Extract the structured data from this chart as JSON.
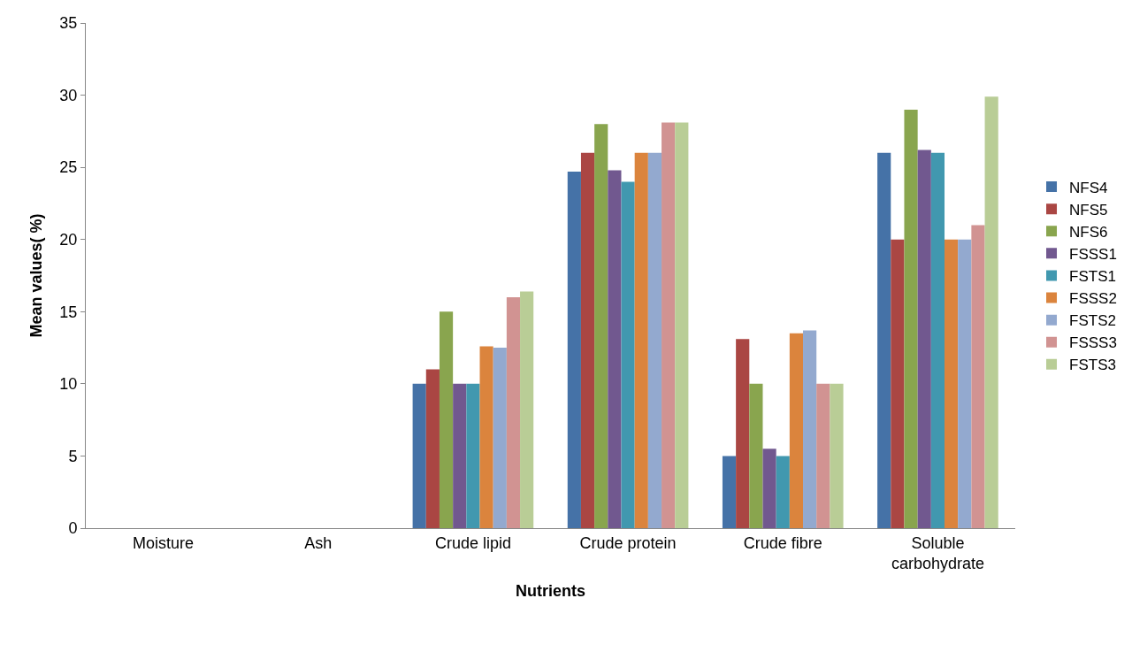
{
  "chart_data": {
    "type": "bar",
    "xlabel": "Nutrients",
    "ylabel": "Mean values( %)",
    "categories": [
      "Moisture",
      "Ash",
      "Crude lipid",
      "Crude protein",
      "Crude fibre",
      "Soluble carbohydrate"
    ],
    "series": [
      {
        "name": "NFS4",
        "color": "#4572a7",
        "values": [
          0,
          0,
          10,
          24.7,
          5,
          26
        ]
      },
      {
        "name": "NFS5",
        "color": "#aa4643",
        "values": [
          0,
          0,
          11,
          26,
          13.1,
          20
        ]
      },
      {
        "name": "NFS6",
        "color": "#89a54e",
        "values": [
          0,
          0,
          15,
          28,
          10,
          29
        ]
      },
      {
        "name": "FSSS1",
        "color": "#71588f",
        "values": [
          0,
          0,
          10,
          24.8,
          5.5,
          26.2
        ]
      },
      {
        "name": "FSTS1",
        "color": "#4198af",
        "values": [
          0,
          0,
          10,
          24,
          5,
          26
        ]
      },
      {
        "name": "FSSS2",
        "color": "#db843d",
        "values": [
          0,
          0,
          12.6,
          26,
          13.5,
          20
        ]
      },
      {
        "name": "FSTS2",
        "color": "#93a9cf",
        "values": [
          0,
          0,
          12.5,
          26,
          13.7,
          20
        ]
      },
      {
        "name": "FSSS3",
        "color": "#d19392",
        "values": [
          0,
          0,
          16,
          28.1,
          10,
          21
        ]
      },
      {
        "name": "FSTS3",
        "color": "#b9cd96",
        "values": [
          0,
          0,
          16.4,
          28.1,
          10,
          29.9
        ]
      }
    ],
    "ylim": [
      0,
      35
    ],
    "yticks": [
      0,
      5,
      10,
      15,
      20,
      25,
      30,
      35
    ],
    "legend": "right"
  }
}
